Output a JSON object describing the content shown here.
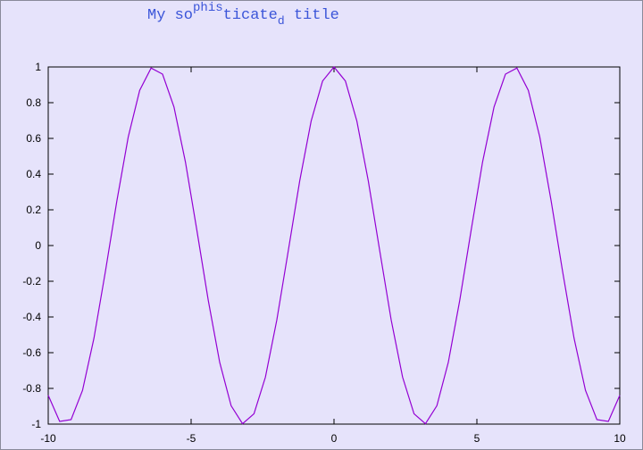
{
  "chart_data": {
    "type": "line",
    "title": {
      "part1": "My so",
      "sup": "phis",
      "part2": "ticate",
      "sub": "d",
      "part3": " title"
    },
    "title_color": "#3b55d9",
    "background_color": "#e6e3fb",
    "line_color": "#9400d3",
    "xlim": [
      -10,
      10
    ],
    "ylim": [
      -1,
      1
    ],
    "x_ticks": [
      -10,
      -5,
      0,
      5,
      10
    ],
    "x_tick_labels": [
      "-10",
      "-5",
      "0",
      "5",
      "10"
    ],
    "y_ticks": [
      -1,
      -0.8,
      -0.6,
      -0.4,
      -0.2,
      0,
      0.2,
      0.4,
      0.6,
      0.8,
      1
    ],
    "y_tick_labels": [
      "-1",
      "-0.8",
      "-0.6",
      "-0.4",
      "-0.2",
      "0",
      "0.2",
      "0.4",
      "0.6",
      "0.8",
      "1"
    ],
    "grid": false,
    "series": [
      {
        "x": [
          -10,
          -9.6,
          -9.2,
          -8.8,
          -8.4,
          -8.0,
          -7.6,
          -7.2,
          -6.8,
          -6.4,
          -6.0,
          -5.6,
          -5.2,
          -4.8,
          -4.4,
          -4.0,
          -3.6,
          -3.2,
          -2.8,
          -2.4,
          -2.0,
          -1.6,
          -1.2,
          -0.8,
          -0.4,
          0.0,
          0.4,
          0.8,
          1.2,
          1.6,
          2.0,
          2.4,
          2.8,
          3.2,
          3.6,
          4.0,
          4.4,
          4.8,
          5.2,
          5.6,
          6.0,
          6.4,
          6.8,
          7.2,
          7.6,
          8.0,
          8.4,
          8.8,
          9.2,
          9.6,
          10
        ],
        "y": [
          -0.839,
          -0.985,
          -0.975,
          -0.811,
          -0.519,
          -0.146,
          0.248,
          0.608,
          0.869,
          0.994,
          0.96,
          0.776,
          0.469,
          0.087,
          -0.307,
          -0.654,
          -0.897,
          -0.998,
          -0.942,
          -0.737,
          -0.416,
          -0.029,
          0.362,
          0.697,
          0.921,
          1.0,
          0.921,
          0.697,
          0.362,
          -0.029,
          -0.416,
          -0.737,
          -0.942,
          -0.998,
          -0.897,
          -0.654,
          -0.307,
          0.087,
          0.469,
          0.776,
          0.96,
          0.994,
          0.869,
          0.608,
          0.248,
          -0.146,
          -0.519,
          -0.811,
          -0.975,
          -0.985,
          -0.839
        ]
      }
    ]
  }
}
